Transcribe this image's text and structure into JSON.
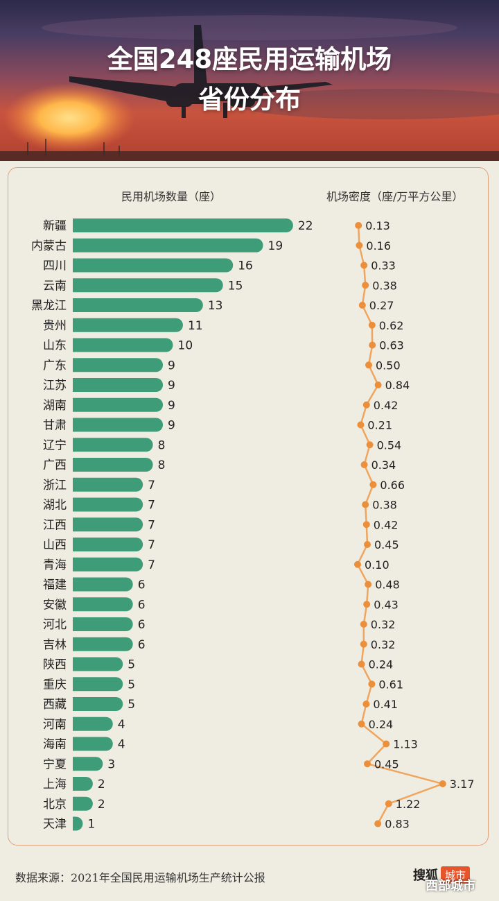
{
  "header": {
    "title_line1": "全国248座民用运输机场",
    "title_line2": "省份分布"
  },
  "columns": {
    "count_header": "民用机场数量（座）",
    "density_header": "机场密度（座/万平方公里）"
  },
  "footer": {
    "source": "数据来源：2021年全国民用运输机场生产统计公报",
    "brand_name": "搜狐",
    "brand_tag": "城市",
    "watermark": "西部城市"
  },
  "colors": {
    "bar": "#3e9d78",
    "density_line": "#f0a55e",
    "density_point": "#ec8f3a"
  },
  "chart_data": [
    {
      "type": "bar",
      "orientation": "horizontal",
      "title": "",
      "xlabel": "民用机场数量（座）",
      "categories": [
        "新疆",
        "内蒙古",
        "四川",
        "云南",
        "黑龙江",
        "贵州",
        "山东",
        "广东",
        "江苏",
        "湖南",
        "甘肃",
        "辽宁",
        "广西",
        "浙江",
        "湖北",
        "江西",
        "山西",
        "青海",
        "福建",
        "安徽",
        "河北",
        "吉林",
        "陕西",
        "重庆",
        "西藏",
        "河南",
        "海南",
        "宁夏",
        "上海",
        "北京",
        "天津"
      ],
      "values": [
        22,
        19,
        16,
        15,
        13,
        11,
        10,
        9,
        9,
        9,
        9,
        8,
        8,
        7,
        7,
        7,
        7,
        7,
        6,
        6,
        6,
        6,
        5,
        5,
        5,
        4,
        4,
        3,
        2,
        2,
        1
      ],
      "xlim": [
        0,
        22
      ],
      "grid": false
    },
    {
      "type": "line",
      "xlabel": "机场密度（座/万平方公里）",
      "categories": [
        "新疆",
        "内蒙古",
        "四川",
        "云南",
        "黑龙江",
        "贵州",
        "山东",
        "广东",
        "江苏",
        "湖南",
        "甘肃",
        "辽宁",
        "广西",
        "浙江",
        "湖北",
        "江西",
        "山西",
        "青海",
        "福建",
        "安徽",
        "河北",
        "吉林",
        "陕西",
        "重庆",
        "西藏",
        "河南",
        "海南",
        "宁夏",
        "上海",
        "北京",
        "天津"
      ],
      "values": [
        "0.13",
        "0.16",
        "0.33",
        "0.38",
        "0.27",
        "0.62",
        "0.63",
        "0.50",
        "0.84",
        "0.42",
        "0.21",
        "0.54",
        "0.34",
        "0.66",
        "0.38",
        "0.42",
        "0.45",
        "0.10",
        "0.48",
        "0.43",
        "0.32",
        "0.32",
        "0.24",
        "0.61",
        "0.41",
        "0.24",
        "1.13",
        "0.45",
        "3.17",
        "1.22",
        "0.83"
      ],
      "xlim": [
        0,
        3.2
      ],
      "grid": false
    }
  ]
}
